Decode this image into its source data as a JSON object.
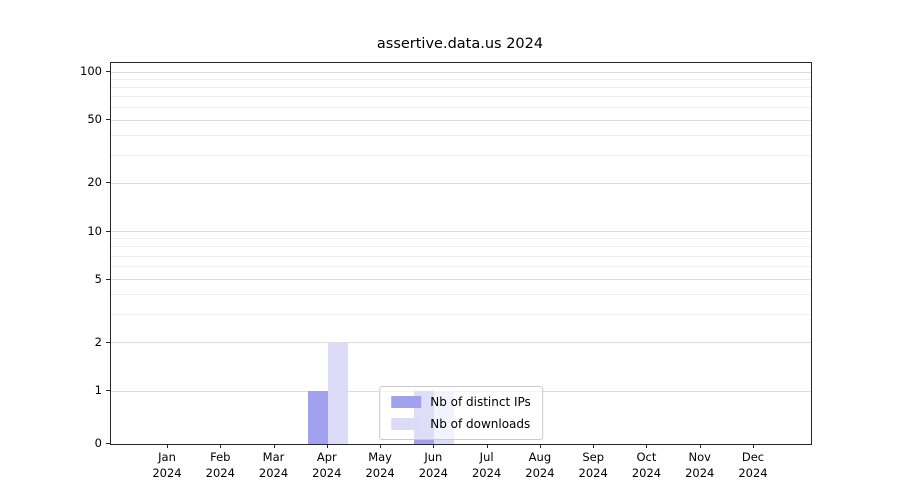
{
  "title": "assertive.data.us 2024",
  "chart_data": {
    "type": "bar",
    "title": "assertive.data.us 2024",
    "categories": [
      "Jan",
      "Feb",
      "Mar",
      "Apr",
      "May",
      "Jun",
      "Jul",
      "Aug",
      "Sep",
      "Oct",
      "Nov",
      "Dec"
    ],
    "year": "2024",
    "series": [
      {
        "name": "Nb of distinct IPs",
        "color": "#a1a1ee",
        "values": [
          0,
          0,
          0,
          1,
          0,
          1,
          0,
          0,
          0,
          0,
          0,
          0
        ]
      },
      {
        "name": "Nb of downloads",
        "color": "#dcdcf8",
        "values": [
          0,
          0,
          0,
          2,
          0,
          1,
          0,
          0,
          0,
          0,
          0,
          0
        ]
      }
    ],
    "yscale": "symlog",
    "y_ticks": [
      0,
      1,
      2,
      5,
      10,
      20,
      50,
      100
    ],
    "ylim": [
      0,
      100
    ],
    "grid": true,
    "legend_position": "lower center",
    "colors": {
      "grid_minor": "#efefef",
      "grid_major": "#dddddd",
      "axis": "#262626"
    }
  }
}
